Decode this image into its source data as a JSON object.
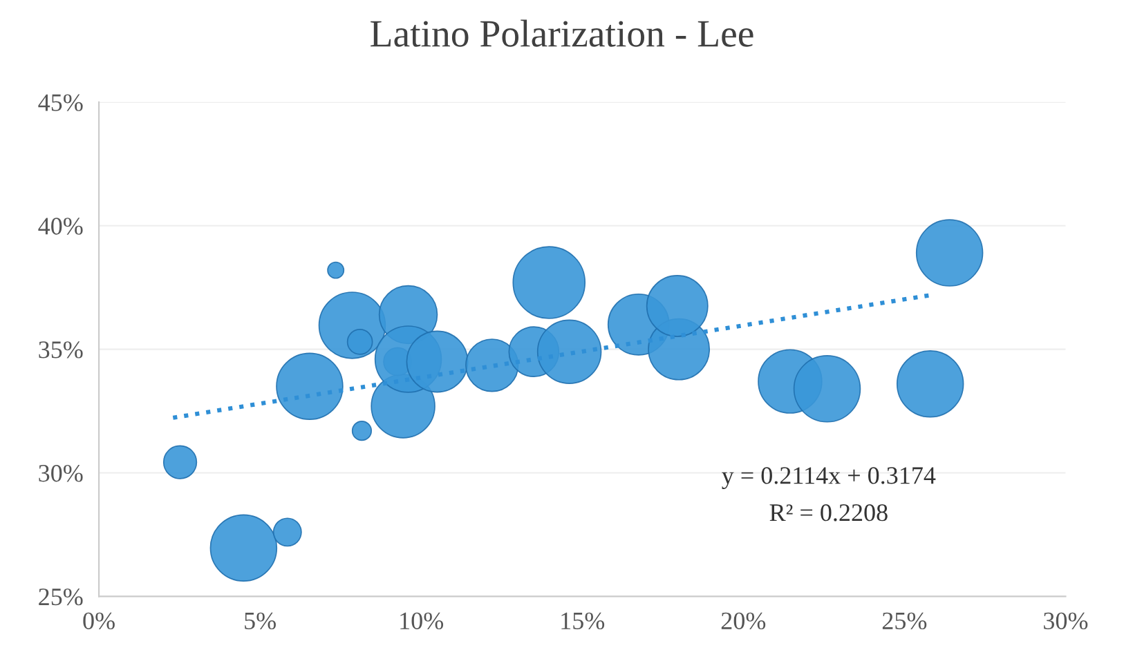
{
  "chart_data": {
    "type": "bubble",
    "title": "Latino Polarization - Lee",
    "series": [
      {
        "color": "#3a97d8",
        "x": [
          2.52,
          4.49,
          5.85,
          6.54,
          7.35,
          7.86,
          8.1,
          8.16,
          9.44,
          9.6,
          9.27,
          9.6,
          10.5,
          12.2,
          13.97,
          13.5,
          14.6,
          16.75,
          18.0,
          17.95,
          21.45,
          22.6,
          25.8,
          26.4
        ],
        "values": [
          30.43,
          26.96,
          27.6,
          33.5,
          38.2,
          35.97,
          35.3,
          31.7,
          32.7,
          36.4,
          34.5,
          34.6,
          34.5,
          34.35,
          37.7,
          34.9,
          34.9,
          36.0,
          35.0,
          36.75,
          33.7,
          33.4,
          33.6,
          38.9
        ],
        "sizes": [
          0.21,
          0.85,
          0.15,
          0.85,
          0.05,
          0.85,
          0.12,
          0.07,
          0.78,
          0.65,
          0.15,
          0.85,
          0.72,
          0.53,
          1,
          0.48,
          0.78,
          0.72,
          0.72,
          0.72,
          0.78,
          0.85,
          0.85,
          0.85
        ]
      },
      {
        "type": "line",
        "color": "#2f8fd6",
        "line_style": "dotted",
        "x": [
          2.3,
          25.8
        ],
        "values": [
          32.23,
          37.19
        ]
      }
    ],
    "xlim": [
      0,
      30
    ],
    "ylim": [
      25,
      45
    ],
    "xticks": [
      {
        "value": 0,
        "label": "0%"
      },
      {
        "value": 5,
        "label": "5%"
      },
      {
        "value": 10,
        "label": "10%"
      },
      {
        "value": 15,
        "label": "15%"
      },
      {
        "value": 20,
        "label": "20%"
      },
      {
        "value": 25,
        "label": "25%"
      },
      {
        "value": 30,
        "label": "30%"
      }
    ],
    "yticks": [
      {
        "value": 25,
        "label": "25%"
      },
      {
        "value": 30,
        "label": "30%"
      },
      {
        "value": 35,
        "label": "35%"
      },
      {
        "value": 40,
        "label": "40%"
      },
      {
        "value": 45,
        "label": "45%"
      }
    ],
    "grid": "y",
    "annotations": [
      "y = 0.2114x + 0.3174",
      "R² = 0.2208"
    ]
  }
}
